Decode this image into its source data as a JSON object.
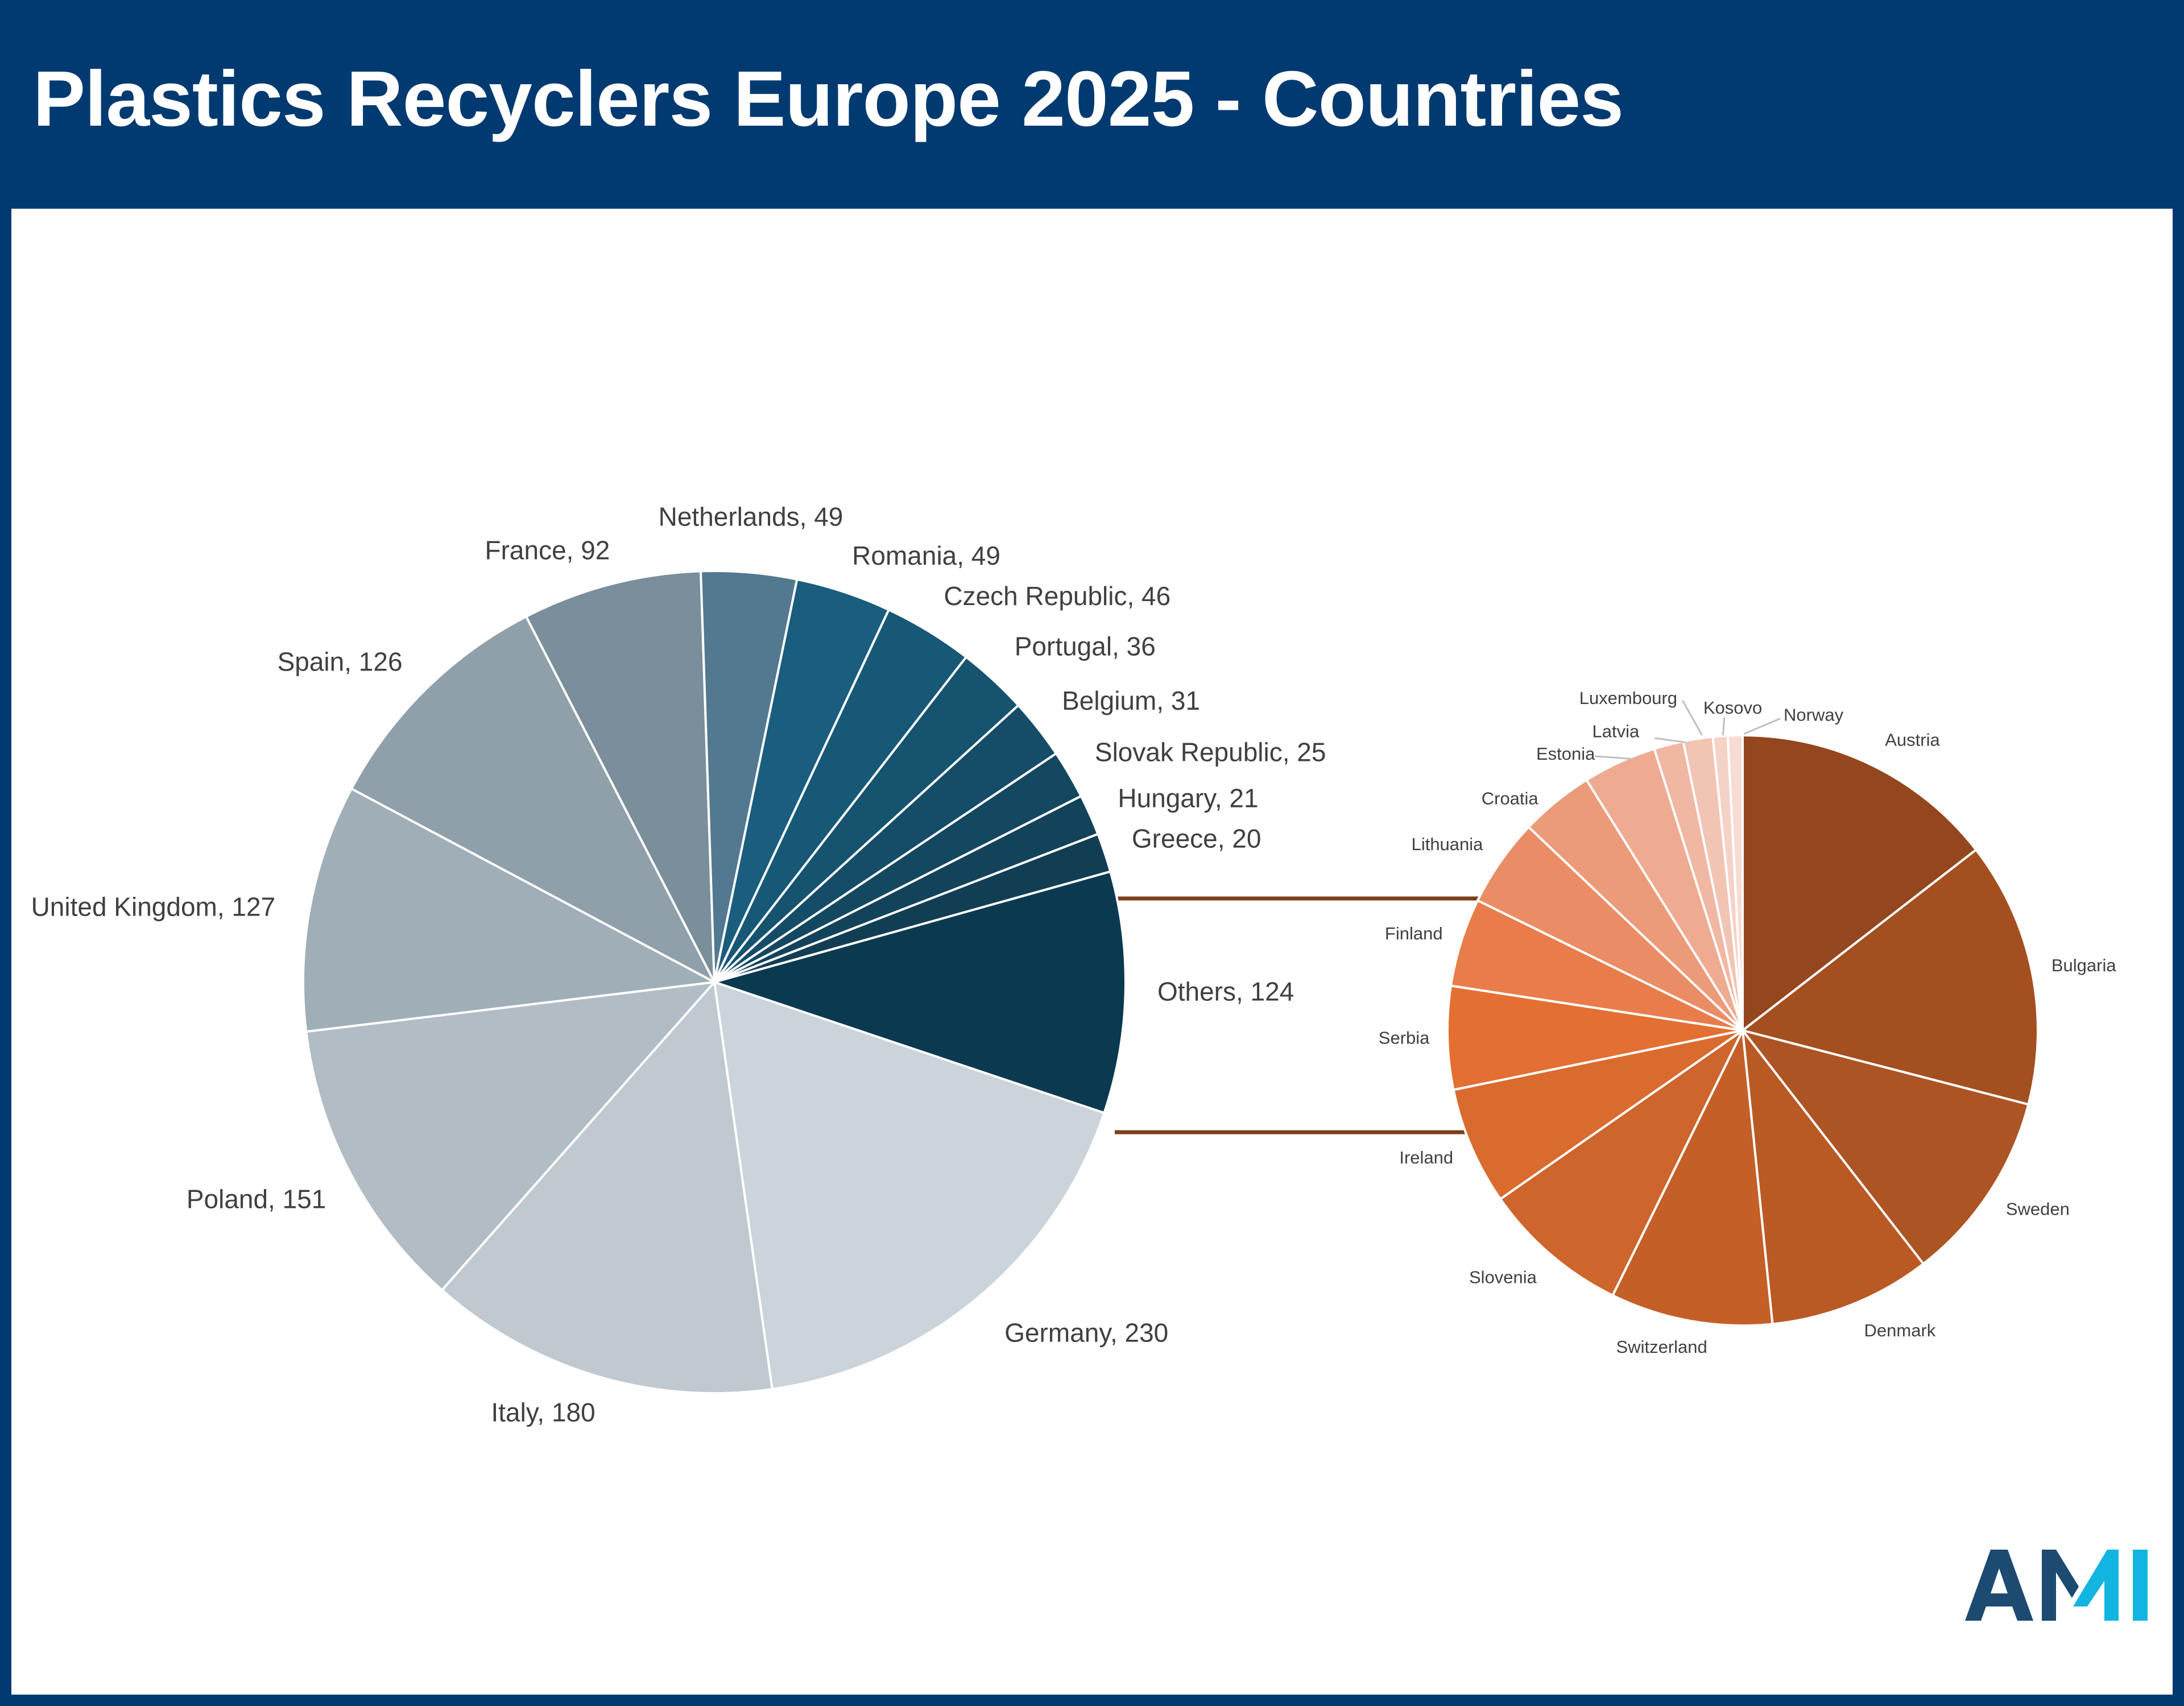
{
  "header": {
    "title": "Plastics Recyclers Europe 2025 - Countries"
  },
  "logo": {
    "text": "AMI",
    "colors": {
      "dark": "#1d4a70",
      "light": "#12b5e0"
    }
  },
  "colors": {
    "header_bg": "#003a70",
    "connector": "#7b3f1c"
  },
  "chart_data": [
    {
      "type": "pie",
      "title": "",
      "label_format": "{name}, {value}",
      "categories": [
        "Others",
        "Germany",
        "Italy",
        "Poland",
        "United Kingdom",
        "Spain",
        "France",
        "Netherlands",
        "Romania",
        "Czech Republic",
        "Portugal",
        "Belgium",
        "Slovak Republic",
        "Hungary",
        "Greece"
      ],
      "values": [
        124,
        230,
        180,
        151,
        127,
        126,
        92,
        49,
        49,
        46,
        36,
        31,
        25,
        21,
        20
      ],
      "labels": [
        "Others, 124",
        "Germany, 230",
        "Italy, 180",
        "Poland, 151",
        "United Kingdom, 127",
        "Spain, 126",
        "France, 92",
        "Netherlands, 49",
        "Romania, 49",
        "Czech Republic, 46",
        "Portugal, 36",
        "Belgium, 31",
        "Slovak Republic, 25",
        "Hungary, 21",
        "Greece, 20"
      ],
      "colors": [
        "#0b3a50",
        "#cbd4da",
        "#c0c9cf",
        "#b1bcc4",
        "#a0aeb8",
        "#8fa0ab",
        "#7a8e9c",
        "#52798f",
        "#1a5d7e",
        "#175877",
        "#16536f",
        "#154d68",
        "#144861",
        "#13435a",
        "#123e54"
      ]
    },
    {
      "type": "pie",
      "title": "",
      "breakdown_of": "Others",
      "categories": [
        "Austria",
        "Bulgaria",
        "Sweden",
        "Denmark",
        "Switzerland",
        "Slovenia",
        "Ireland",
        "Serbia",
        "Finland",
        "Lithuania",
        "Croatia",
        "Estonia",
        "Latvia",
        "Luxembourg",
        "Kosovo",
        "Norway"
      ],
      "values": [
        18,
        18,
        13,
        11,
        11,
        10,
        8,
        7,
        6,
        6,
        5,
        5,
        2,
        2,
        1,
        1
      ],
      "colors": [
        "#94461e",
        "#a34f20",
        "#ad5424",
        "#b95a25",
        "#c55f28",
        "#cd652c",
        "#da6b2f",
        "#e36f32",
        "#e87d4b",
        "#ea8d66",
        "#eb9b7a",
        "#efab91",
        "#f0b7a2",
        "#f2c4b4",
        "#f5d2c6",
        "#f7dcd3"
      ]
    }
  ]
}
